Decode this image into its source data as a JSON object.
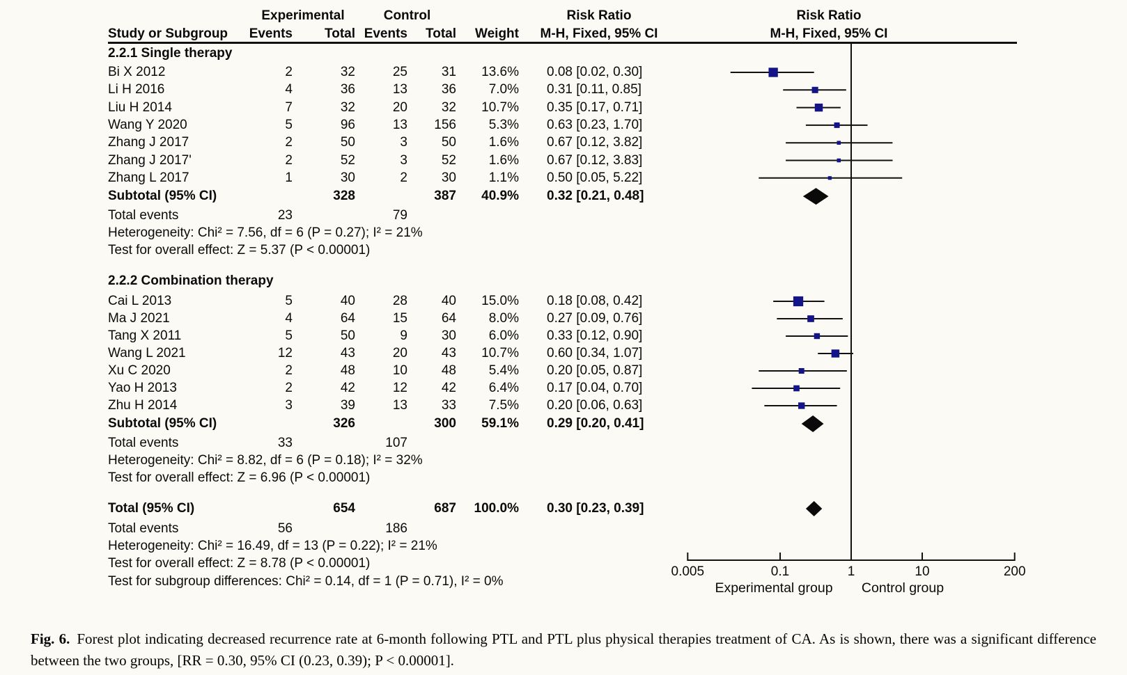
{
  "header": {
    "experimental": "Experimental",
    "control": "Control",
    "risk_ratio": "Risk Ratio",
    "study": "Study or Subgroup",
    "events": "Events",
    "total": "Total",
    "weight": "Weight",
    "mh": "M-H, Fixed, 95% CI"
  },
  "chart_data": {
    "type": "forest",
    "effect_label": "Risk Ratio",
    "method_label": "M-H, Fixed, 95% CI",
    "marker_color": "#131487",
    "line_color": "#111111",
    "axis": {
      "scale": "log",
      "min": 0.005,
      "max": 200,
      "ticks": [
        0.005,
        0.1,
        1,
        10,
        200
      ],
      "tick_labels": [
        "0.005",
        "0.1",
        "1",
        "10",
        "200"
      ],
      "left_label": "Experimental group",
      "right_label": "Control group"
    },
    "groups": [
      {
        "name": "2.2.1 Single therapy",
        "studies": [
          {
            "label": "Bi X 2012",
            "e_events": "2",
            "e_total": "32",
            "c_events": "25",
            "c_total": "31",
            "weight": "13.6%",
            "rr": 0.08,
            "lo": 0.02,
            "hi": 0.3,
            "ci": "0.08 [0.02, 0.30]"
          },
          {
            "label": "Li H 2016",
            "e_events": "4",
            "e_total": "36",
            "c_events": "13",
            "c_total": "36",
            "weight": "7.0%",
            "rr": 0.31,
            "lo": 0.11,
            "hi": 0.85,
            "ci": "0.31 [0.11, 0.85]"
          },
          {
            "label": "Liu H 2014",
            "e_events": "7",
            "e_total": "32",
            "c_events": "20",
            "c_total": "32",
            "weight": "10.7%",
            "rr": 0.35,
            "lo": 0.17,
            "hi": 0.71,
            "ci": "0.35 [0.17, 0.71]"
          },
          {
            "label": "Wang Y 2020",
            "e_events": "5",
            "e_total": "96",
            "c_events": "13",
            "c_total": "156",
            "weight": "5.3%",
            "rr": 0.63,
            "lo": 0.23,
            "hi": 1.7,
            "ci": "0.63 [0.23, 1.70]"
          },
          {
            "label": "Zhang J 2017",
            "e_events": "2",
            "e_total": "50",
            "c_events": "3",
            "c_total": "50",
            "weight": "1.6%",
            "rr": 0.67,
            "lo": 0.12,
            "hi": 3.82,
            "ci": "0.67 [0.12, 3.82]"
          },
          {
            "label": "Zhang J 2017'",
            "e_events": "2",
            "e_total": "52",
            "c_events": "3",
            "c_total": "52",
            "weight": "1.6%",
            "rr": 0.67,
            "lo": 0.12,
            "hi": 3.83,
            "ci": "0.67 [0.12, 3.83]"
          },
          {
            "label": "Zhang L 2017",
            "e_events": "1",
            "e_total": "30",
            "c_events": "2",
            "c_total": "30",
            "weight": "1.1%",
            "rr": 0.5,
            "lo": 0.05,
            "hi": 5.22,
            "ci": "0.50 [0.05, 5.22]"
          }
        ],
        "subtotal": {
          "label": "Subtotal (95% CI)",
          "e_total": "328",
          "c_total": "387",
          "weight": "40.9%",
          "rr": 0.32,
          "lo": 0.21,
          "hi": 0.48,
          "ci": "0.32 [0.21, 0.48]"
        },
        "total_events": {
          "label": "Total events",
          "experimental": "23",
          "control": "79"
        },
        "heterogeneity": "Heterogeneity: Chi² = 7.56, df = 6 (P = 0.27); I² = 21%",
        "overall_effect": "Test for overall effect: Z = 5.37 (P < 0.00001)"
      },
      {
        "name": "2.2.2 Combination therapy",
        "studies": [
          {
            "label": "Cai L 2013",
            "e_events": "5",
            "e_total": "40",
            "c_events": "28",
            "c_total": "40",
            "weight": "15.0%",
            "rr": 0.18,
            "lo": 0.08,
            "hi": 0.42,
            "ci": "0.18 [0.08, 0.42]"
          },
          {
            "label": "Ma J 2021",
            "e_events": "4",
            "e_total": "64",
            "c_events": "15",
            "c_total": "64",
            "weight": "8.0%",
            "rr": 0.27,
            "lo": 0.09,
            "hi": 0.76,
            "ci": "0.27 [0.09, 0.76]"
          },
          {
            "label": "Tang X 2011",
            "e_events": "5",
            "e_total": "50",
            "c_events": "9",
            "c_total": "30",
            "weight": "6.0%",
            "rr": 0.33,
            "lo": 0.12,
            "hi": 0.9,
            "ci": "0.33 [0.12, 0.90]"
          },
          {
            "label": "Wang L 2021",
            "e_events": "12",
            "e_total": "43",
            "c_events": "20",
            "c_total": "43",
            "weight": "10.7%",
            "rr": 0.6,
            "lo": 0.34,
            "hi": 1.07,
            "ci": "0.60 [0.34, 1.07]"
          },
          {
            "label": "Xu C 2020",
            "e_events": "2",
            "e_total": "48",
            "c_events": "10",
            "c_total": "48",
            "weight": "5.4%",
            "rr": 0.2,
            "lo": 0.05,
            "hi": 0.87,
            "ci": "0.20 [0.05, 0.87]"
          },
          {
            "label": "Yao H 2013",
            "e_events": "2",
            "e_total": "42",
            "c_events": "12",
            "c_total": "42",
            "weight": "6.4%",
            "rr": 0.17,
            "lo": 0.04,
            "hi": 0.7,
            "ci": "0.17 [0.04, 0.70]"
          },
          {
            "label": "Zhu H 2014",
            "e_events": "3",
            "e_total": "39",
            "c_events": "13",
            "c_total": "33",
            "weight": "7.5%",
            "rr": 0.2,
            "lo": 0.06,
            "hi": 0.63,
            "ci": "0.20 [0.06, 0.63]"
          }
        ],
        "subtotal": {
          "label": "Subtotal (95% CI)",
          "e_total": "326",
          "c_total": "300",
          "weight": "59.1%",
          "rr": 0.29,
          "lo": 0.2,
          "hi": 0.41,
          "ci": "0.29 [0.20, 0.41]"
        },
        "total_events": {
          "label": "Total events",
          "experimental": "33",
          "control": "107"
        },
        "heterogeneity": "Heterogeneity: Chi² = 8.82, df = 6 (P = 0.18); I² = 32%",
        "overall_effect": "Test for overall effect: Z = 6.96 (P < 0.00001)"
      }
    ],
    "total": {
      "label": "Total (95% CI)",
      "e_total": "654",
      "c_total": "687",
      "weight": "100.0%",
      "rr": 0.3,
      "lo": 0.23,
      "hi": 0.39,
      "ci": "0.30 [0.23, 0.39]",
      "total_events": {
        "label": "Total events",
        "experimental": "56",
        "control": "186"
      },
      "heterogeneity": "Heterogeneity: Chi² = 16.49, df = 13 (P = 0.22); I² = 21%",
      "overall_effect": "Test for overall effect: Z = 8.78 (P < 0.00001)",
      "subgroup_diff": "Test for subgroup differences: Chi² = 0.14, df = 1 (P = 0.71), I² = 0%"
    }
  },
  "caption": {
    "tag": "Fig. 6.",
    "text": "Forest plot indicating decreased recurrence rate at 6-month following PTL and PTL plus physical therapies treatment of CA. As is shown, there was a significant difference between the two groups, [RR = 0.30, 95% CI (0.23, 0.39); P < 0.00001]."
  }
}
